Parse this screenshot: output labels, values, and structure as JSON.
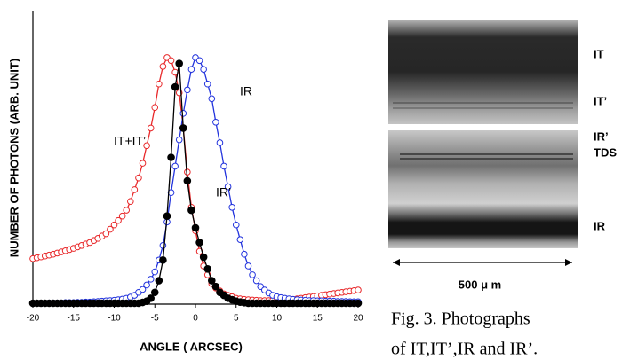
{
  "chart_data": {
    "type": "line",
    "x_label": "ANGLE ( ARCSEC)",
    "y_label": "NUMBER OF PHOTONS (ARB. UNIT)",
    "x": [
      -20,
      -19.5,
      -19,
      -18.5,
      -18,
      -17.5,
      -17,
      -16.5,
      -16,
      -15.5,
      -15,
      -14.5,
      -14,
      -13.5,
      -13,
      -12.5,
      -12,
      -11.5,
      -11,
      -10.5,
      -10,
      -9.5,
      -9,
      -8.5,
      -8,
      -7.5,
      -7,
      -6.5,
      -6,
      -5.5,
      -5,
      -4.5,
      -4,
      -3.5,
      -3,
      -2.5,
      -2,
      -1.5,
      -1,
      -0.5,
      0,
      0.5,
      1,
      1.5,
      2,
      2.5,
      3,
      3.5,
      4,
      4.5,
      5,
      5.5,
      6,
      6.5,
      7,
      7.5,
      8,
      8.5,
      9,
      9.5,
      10,
      10.5,
      11,
      11.5,
      12,
      12.5,
      13,
      13.5,
      14,
      14.5,
      15,
      15.5,
      16,
      16.5,
      17,
      17.5,
      18,
      18.5,
      19,
      19.5,
      20
    ],
    "xlim": [
      -20,
      20
    ],
    "xticks": [
      -20,
      -15,
      -10,
      -5,
      0,
      5,
      10,
      15,
      20
    ],
    "ylim": [
      0,
      1
    ],
    "series": [
      {
        "name": "IT+IT’",
        "color": "#e8282a",
        "marker": "open",
        "values": [
          0.155,
          0.158,
          0.161,
          0.164,
          0.167,
          0.17,
          0.174,
          0.178,
          0.182,
          0.186,
          0.19,
          0.195,
          0.2,
          0.205,
          0.21,
          0.217,
          0.224,
          0.232,
          0.24,
          0.255,
          0.27,
          0.285,
          0.3,
          0.32,
          0.35,
          0.39,
          0.43,
          0.48,
          0.54,
          0.6,
          0.67,
          0.75,
          0.81,
          0.84,
          0.83,
          0.79,
          0.72,
          0.6,
          0.45,
          0.33,
          0.25,
          0.18,
          0.13,
          0.1,
          0.07,
          0.055,
          0.045,
          0.035,
          0.03,
          0.025,
          0.02,
          0.018,
          0.016,
          0.015,
          0.014,
          0.013,
          0.012,
          0.012,
          0.012,
          0.012,
          0.012,
          0.013,
          0.014,
          0.015,
          0.016,
          0.018,
          0.02,
          0.022,
          0.024,
          0.026,
          0.028,
          0.03,
          0.032,
          0.034,
          0.036,
          0.038,
          0.04,
          0.042,
          0.044,
          0.046,
          0.048
        ]
      },
      {
        "name": "IR",
        "color": "#2233dd",
        "marker": "open",
        "values": [
          0.003,
          0.003,
          0.003,
          0.003,
          0.004,
          0.004,
          0.004,
          0.004,
          0.005,
          0.005,
          0.005,
          0.006,
          0.006,
          0.007,
          0.007,
          0.008,
          0.009,
          0.01,
          0.011,
          0.012,
          0.013,
          0.015,
          0.017,
          0.02,
          0.024,
          0.03,
          0.04,
          0.05,
          0.065,
          0.085,
          0.11,
          0.15,
          0.2,
          0.28,
          0.38,
          0.47,
          0.56,
          0.65,
          0.73,
          0.8,
          0.84,
          0.83,
          0.8,
          0.75,
          0.7,
          0.62,
          0.55,
          0.47,
          0.4,
          0.33,
          0.27,
          0.22,
          0.17,
          0.13,
          0.1,
          0.08,
          0.06,
          0.048,
          0.038,
          0.03,
          0.025,
          0.022,
          0.02,
          0.018,
          0.016,
          0.015,
          0.014,
          0.013,
          0.012,
          0.012,
          0.011,
          0.011,
          0.01,
          0.01,
          0.01,
          0.009,
          0.009,
          0.009,
          0.008,
          0.008,
          0.008
        ]
      },
      {
        "name": "IR’",
        "color": "#000000",
        "marker": "filled",
        "values": [
          0.003,
          0.003,
          0.003,
          0.003,
          0.003,
          0.003,
          0.003,
          0.003,
          0.003,
          0.003,
          0.003,
          0.003,
          0.003,
          0.003,
          0.003,
          0.003,
          0.003,
          0.003,
          0.003,
          0.003,
          0.003,
          0.003,
          0.003,
          0.003,
          0.003,
          0.003,
          0.003,
          0.006,
          0.01,
          0.02,
          0.04,
          0.08,
          0.15,
          0.3,
          0.5,
          0.74,
          0.82,
          0.6,
          0.42,
          0.32,
          0.26,
          0.21,
          0.16,
          0.12,
          0.08,
          0.06,
          0.04,
          0.03,
          0.02,
          0.015,
          0.01,
          0.007,
          0.005,
          0.003,
          0.003,
          0.003,
          0.003,
          0.003,
          0.003,
          0.003,
          0.003,
          0.003,
          0.003,
          0.003,
          0.003,
          0.003,
          0.003,
          0.003,
          0.003,
          0.003,
          0.003,
          0.003,
          0.003,
          0.003,
          0.003,
          0.003,
          0.003,
          0.003,
          0.003,
          0.003,
          0.003
        ]
      }
    ]
  },
  "photographs": {
    "top_labels": [
      "IT",
      "IT’"
    ],
    "bottom_labels": [
      "IR’",
      "TDS",
      "IR"
    ],
    "scale_bar": "500 μ m"
  },
  "caption": [
    "Fig. 3. Photographs",
    "of  IT,IT’,IR and IR’."
  ]
}
